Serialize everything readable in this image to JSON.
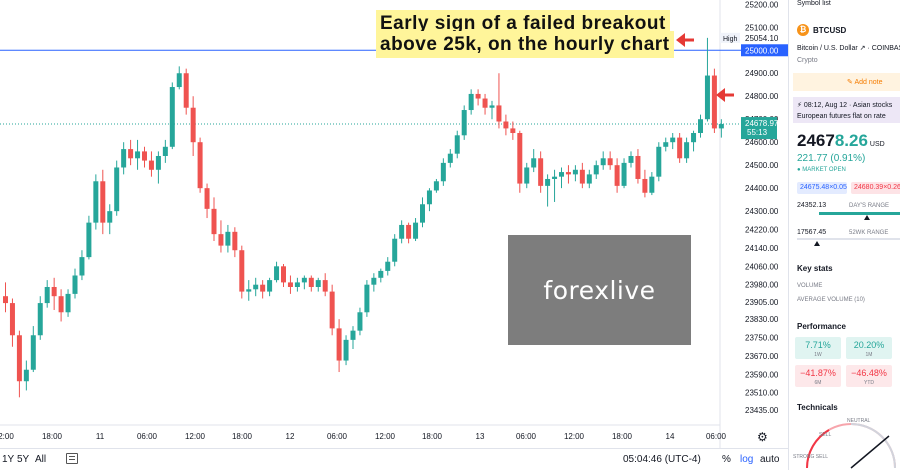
{
  "annotation": {
    "line1": "Early sign of a failed breakout",
    "line2": "above 25k, on the hourly chart"
  },
  "watermark": "forexlive",
  "price_scale": {
    "labels": [
      "25200.00",
      "25100.00",
      "25054.10",
      "25000.00",
      "24900.00",
      "24800.00",
      "24700.00",
      "24600.00",
      "24500.00",
      "24400.00",
      "24300.00",
      "24220.00",
      "24140.00",
      "24060.00",
      "23980.00",
      "23905.00",
      "23830.00",
      "23750.00",
      "23670.00",
      "23590.00",
      "23510.00",
      "23435.00"
    ],
    "high_label": "High",
    "high_value": "25054.10",
    "level_value": "25000.00",
    "last_price": "24678.97",
    "countdown": "55:13"
  },
  "time_axis": [
    "2:00",
    "18:00",
    "11",
    "06:00",
    "12:00",
    "18:00",
    "12",
    "06:00",
    "12:00",
    "18:00",
    "13",
    "06:00",
    "12:00",
    "18:00",
    "14",
    "06:00"
  ],
  "bottom_bar": {
    "ranges": [
      "1Y",
      "5Y",
      "All"
    ],
    "time": "05:04:46 (UTC-4)",
    "percent": "%",
    "log": "log",
    "auto": "auto"
  },
  "colors": {
    "up": "#26a69a",
    "down": "#ef5350",
    "level_line": "#2962ff",
    "arrow": "#e53935",
    "highlight": "#fff59a"
  },
  "panel": {
    "header": "Symbol list",
    "symbol": "BTCUSD",
    "name": "Bitcoin / U.S. Dollar ↗ · COINBASE",
    "type": "Crypto",
    "add_note": "Add note",
    "news_line1": "⚡ 08:12, Aug 12 · Asian stocks",
    "news_line2": "European futures flat on rate",
    "price_int": "2467",
    "price_dec": "8.26",
    "currency": "USD",
    "change": "221.77 (0.91%)",
    "market_status": "● MARKET OPEN",
    "bid": "24675.48×0.05",
    "ask": "24680.39×0.26",
    "days_low": "24352.13",
    "days_range_label": "DAY'S RANGE",
    "wk_low": "17567.45",
    "wk_range_label": "52WK RANGE",
    "key_stats_title": "Key stats",
    "volume_label": "VOLUME",
    "avg_volume_label": "AVERAGE VOLUME (10)",
    "performance_title": "Performance",
    "perf": [
      {
        "value": "7.71%",
        "period": "1W"
      },
      {
        "value": "20.20%",
        "period": "1M"
      },
      {
        "value": "−41.87%",
        "period": "6M"
      },
      {
        "value": "−46.48%",
        "period": "YTD"
      }
    ],
    "technicals_title": "Technicals",
    "gauge_neutral": "NEUTRAL",
    "gauge_sell": "SELL",
    "gauge_strong_sell": "STRONG SELL"
  },
  "chart_data": {
    "type": "candlestick",
    "title": "",
    "xlabel": "",
    "ylabel": "",
    "ylim": [
      23400,
      25210
    ],
    "reference_line": 25000,
    "candles": [
      [
        23930,
        23990,
        23860,
        23900
      ],
      [
        23900,
        23920,
        23710,
        23760
      ],
      [
        23760,
        23780,
        23490,
        23560
      ],
      [
        23560,
        23650,
        23520,
        23610
      ],
      [
        23610,
        23800,
        23600,
        23760
      ],
      [
        23760,
        23930,
        23740,
        23900
      ],
      [
        23900,
        24000,
        23880,
        23970
      ],
      [
        23970,
        24010,
        23870,
        23930
      ],
      [
        23930,
        23960,
        23820,
        23860
      ],
      [
        23860,
        23960,
        23840,
        23940
      ],
      [
        23940,
        24050,
        23920,
        24020
      ],
      [
        24020,
        24130,
        24000,
        24100
      ],
      [
        24100,
        24280,
        24090,
        24250
      ],
      [
        24250,
        24460,
        24220,
        24430
      ],
      [
        24430,
        24480,
        24200,
        24250
      ],
      [
        24250,
        24330,
        24200,
        24300
      ],
      [
        24300,
        24520,
        24280,
        24490
      ],
      [
        24490,
        24600,
        24460,
        24570
      ],
      [
        24570,
        24610,
        24500,
        24530
      ],
      [
        24530,
        24610,
        24480,
        24560
      ],
      [
        24560,
        24580,
        24490,
        24520
      ],
      [
        24520,
        24560,
        24450,
        24480
      ],
      [
        24480,
        24560,
        24420,
        24540
      ],
      [
        24540,
        24610,
        24510,
        24580
      ],
      [
        24580,
        24860,
        24570,
        24840
      ],
      [
        24840,
        24930,
        24830,
        24900
      ],
      [
        24900,
        24920,
        24720,
        24750
      ],
      [
        24750,
        24800,
        24540,
        24600
      ],
      [
        24600,
        24620,
        24380,
        24400
      ],
      [
        24400,
        24420,
        24270,
        24310
      ],
      [
        24310,
        24360,
        24170,
        24200
      ],
      [
        24200,
        24260,
        24120,
        24150
      ],
      [
        24150,
        24240,
        24120,
        24210
      ],
      [
        24210,
        24230,
        24100,
        24130
      ],
      [
        24130,
        24150,
        23920,
        23950
      ],
      [
        23950,
        24000,
        23910,
        23960
      ],
      [
        23960,
        24010,
        23930,
        23980
      ],
      [
        23980,
        24000,
        23920,
        23950
      ],
      [
        23950,
        24010,
        23930,
        24000
      ],
      [
        24000,
        24080,
        23990,
        24060
      ],
      [
        24060,
        24070,
        23970,
        23990
      ],
      [
        23990,
        24020,
        23940,
        23970
      ],
      [
        23970,
        24010,
        23950,
        23990
      ],
      [
        23990,
        24020,
        23960,
        24010
      ],
      [
        24010,
        24020,
        23950,
        23970
      ],
      [
        23970,
        24010,
        23950,
        24000
      ],
      [
        24000,
        24030,
        23930,
        23950
      ],
      [
        23950,
        23980,
        23760,
        23790
      ],
      [
        23790,
        23830,
        23600,
        23650
      ],
      [
        23650,
        23760,
        23630,
        23740
      ],
      [
        23740,
        23800,
        23700,
        23780
      ],
      [
        23780,
        23880,
        23760,
        23860
      ],
      [
        23860,
        24000,
        23840,
        23980
      ],
      [
        23980,
        24030,
        23950,
        24010
      ],
      [
        24010,
        24050,
        23990,
        24040
      ],
      [
        24040,
        24100,
        24020,
        24080
      ],
      [
        24080,
        24200,
        24060,
        24180
      ],
      [
        24180,
        24260,
        24160,
        24240
      ],
      [
        24240,
        24250,
        24160,
        24180
      ],
      [
        24180,
        24270,
        24170,
        24250
      ],
      [
        24250,
        24360,
        24230,
        24330
      ],
      [
        24330,
        24400,
        24300,
        24390
      ],
      [
        24390,
        24440,
        24380,
        24430
      ],
      [
        24430,
        24530,
        24410,
        24510
      ],
      [
        24510,
        24570,
        24490,
        24550
      ],
      [
        24550,
        24650,
        24530,
        24630
      ],
      [
        24630,
        24760,
        24610,
        24740
      ],
      [
        24740,
        24830,
        24720,
        24810
      ],
      [
        24810,
        24830,
        24760,
        24790
      ],
      [
        24790,
        24810,
        24720,
        24750
      ],
      [
        24750,
        24780,
        24700,
        24760
      ],
      [
        24760,
        24900,
        24660,
        24690
      ],
      [
        24690,
        24720,
        24630,
        24660
      ],
      [
        24660,
        24690,
        24610,
        24640
      ],
      [
        24640,
        24650,
        24380,
        24420
      ],
      [
        24420,
        24510,
        24400,
        24490
      ],
      [
        24490,
        24570,
        24470,
        24530
      ],
      [
        24530,
        24560,
        24380,
        24410
      ],
      [
        24410,
        24460,
        24320,
        24440
      ],
      [
        24440,
        24480,
        24340,
        24450
      ],
      [
        24450,
        24490,
        24400,
        24470
      ],
      [
        24470,
        24500,
        24420,
        24460
      ],
      [
        24460,
        24500,
        24430,
        24480
      ],
      [
        24480,
        24510,
        24400,
        24420
      ],
      [
        24420,
        24480,
        24400,
        24460
      ],
      [
        24460,
        24520,
        24440,
        24500
      ],
      [
        24500,
        24560,
        24480,
        24530
      ],
      [
        24530,
        24560,
        24480,
        24500
      ],
      [
        24500,
        24530,
        24380,
        24410
      ],
      [
        24410,
        24530,
        24400,
        24510
      ],
      [
        24510,
        24560,
        24490,
        24540
      ],
      [
        24540,
        24570,
        24420,
        24440
      ],
      [
        24440,
        24480,
        24360,
        24380
      ],
      [
        24380,
        24470,
        24370,
        24450
      ],
      [
        24450,
        24600,
        24430,
        24580
      ],
      [
        24580,
        24620,
        24560,
        24600
      ],
      [
        24600,
        24640,
        24570,
        24620
      ],
      [
        24620,
        24640,
        24510,
        24530
      ],
      [
        24530,
        24620,
        24510,
        24600
      ],
      [
        24600,
        24650,
        24560,
        24640
      ],
      [
        24640,
        24720,
        24620,
        24700
      ],
      [
        24700,
        25054,
        24690,
        24890
      ],
      [
        24890,
        24920,
        24640,
        24660
      ],
      [
        24660,
        24700,
        24620,
        24679
      ]
    ]
  }
}
